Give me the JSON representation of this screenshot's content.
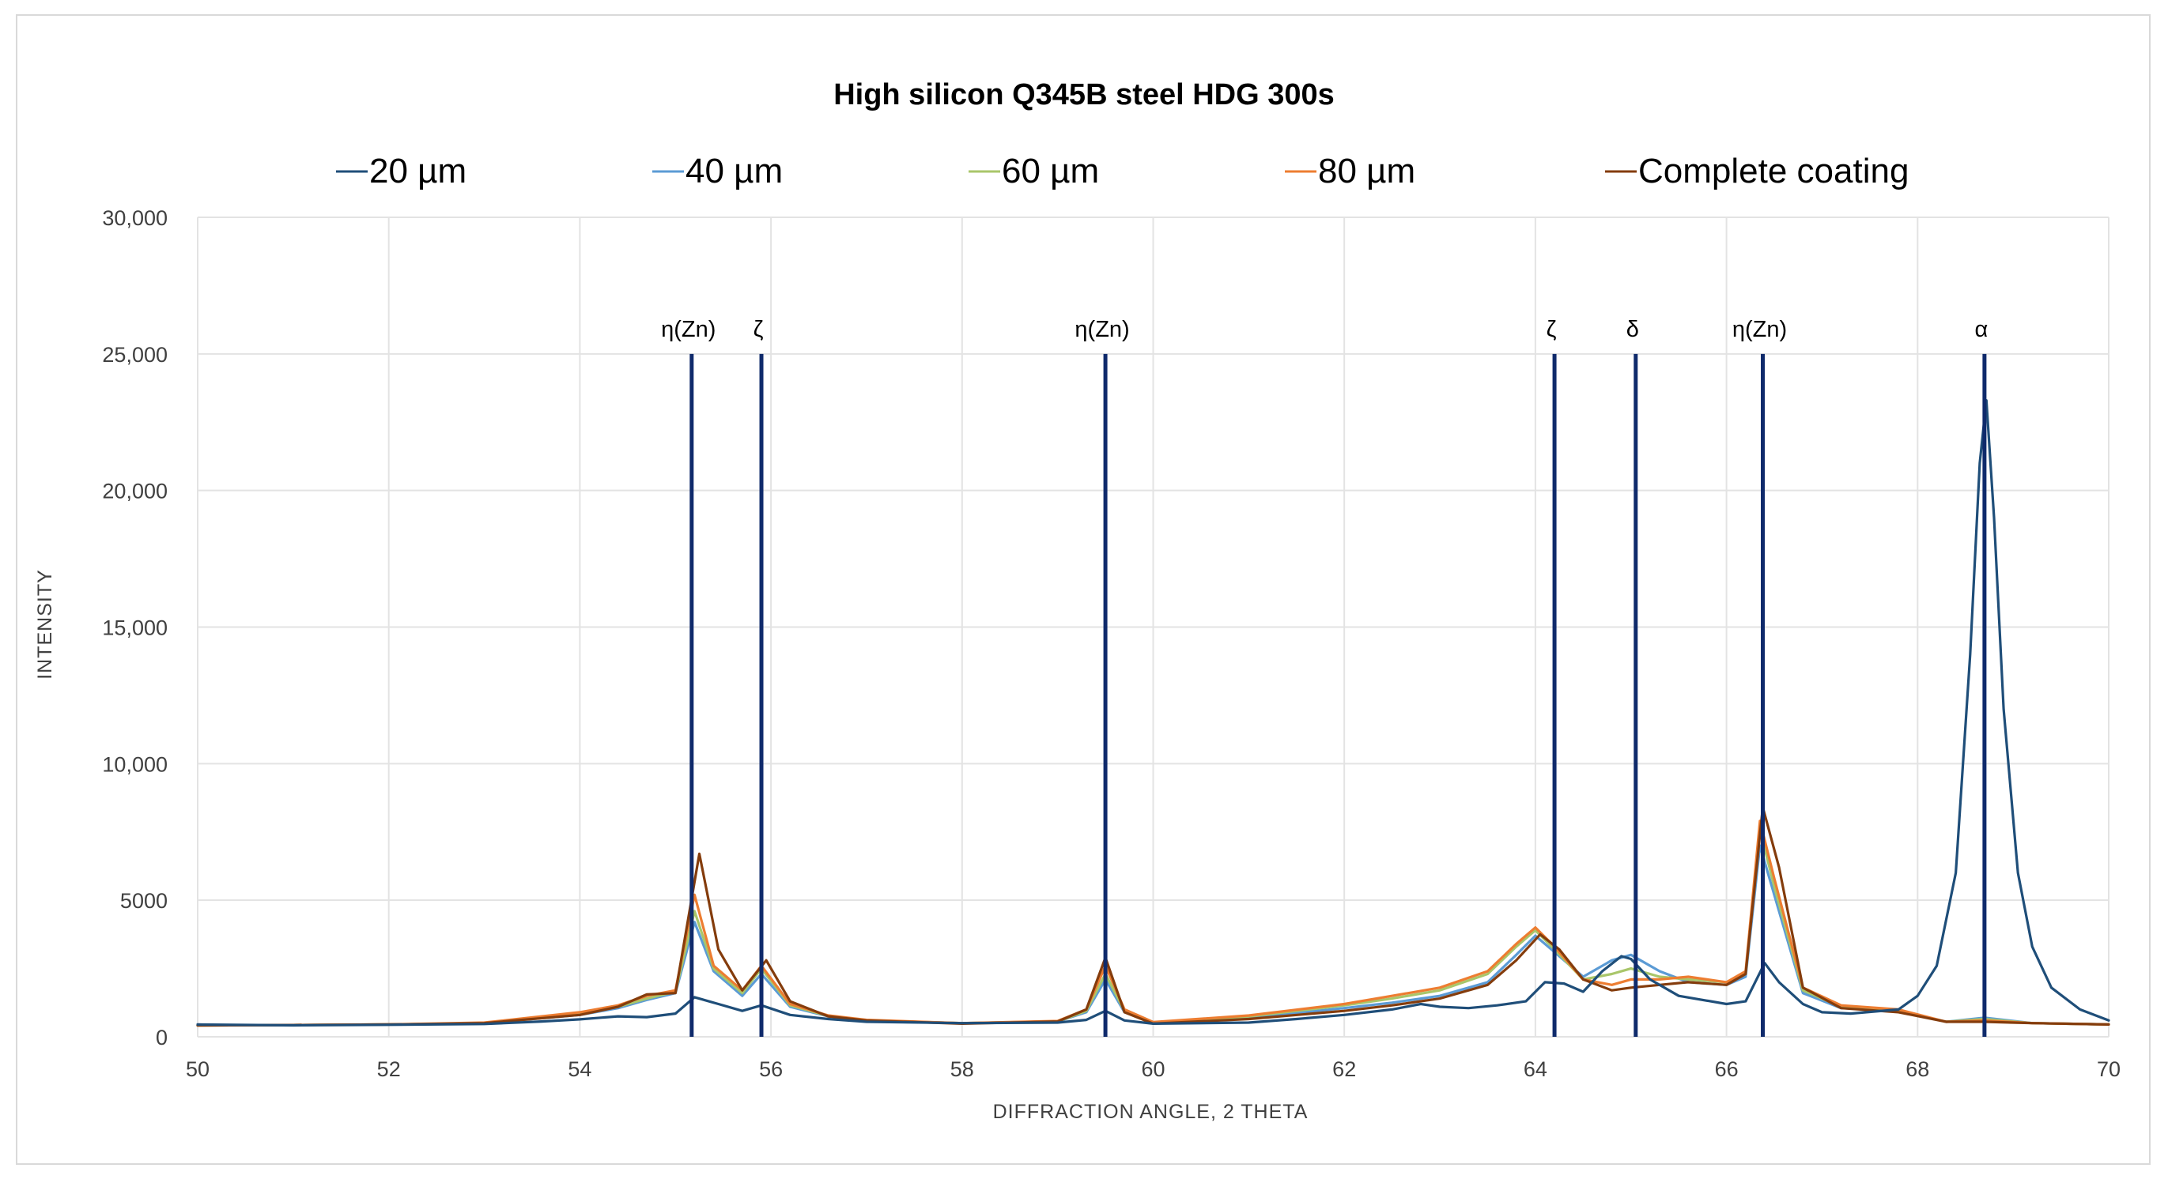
{
  "chart_data": {
    "type": "line",
    "title": "High silicon Q345B steel HDG 300s",
    "xlabel": "DIFFRACTION ANGLE, 2 THETA",
    "ylabel": "INTENSITY",
    "xlim": [
      50,
      70
    ],
    "ylim": [
      0,
      30000
    ],
    "x_ticks": [
      50,
      52,
      54,
      56,
      58,
      60,
      62,
      64,
      66,
      68,
      70
    ],
    "x_tick_labels": [
      "50",
      "52",
      "54",
      "56",
      "58",
      "60",
      "62",
      "64",
      "66",
      "68",
      "70"
    ],
    "y_ticks": [
      0,
      5000,
      10000,
      15000,
      20000,
      25000,
      30000
    ],
    "y_tick_labels": [
      "0",
      "5000",
      "10,000",
      "15,000",
      "20,000",
      "25,000",
      "30,000"
    ],
    "grid": true,
    "legend_position": "top",
    "series": [
      {
        "name": "20 µm",
        "color": "#1f4e79",
        "x": [
          50,
          51,
          52,
          53,
          53.6,
          54,
          54.4,
          54.7,
          55,
          55.2,
          55.45,
          55.7,
          55.9,
          56.2,
          56.6,
          57,
          58,
          59,
          59.3,
          59.5,
          59.7,
          60,
          61,
          61.5,
          62,
          62.5,
          62.8,
          63,
          63.3,
          63.6,
          63.9,
          64.1,
          64.3,
          64.5,
          64.7,
          64.9,
          65,
          65.2,
          65.5,
          66,
          66.2,
          66.4,
          66.55,
          66.8,
          67,
          67.3,
          67.8,
          68,
          68.2,
          68.4,
          68.55,
          68.65,
          68.72,
          68.8,
          68.9,
          69.05,
          69.2,
          69.4,
          69.7,
          70
        ],
        "y": [
          450,
          420,
          440,
          470,
          560,
          640,
          750,
          720,
          850,
          1450,
          1200,
          950,
          1150,
          800,
          650,
          550,
          500,
          520,
          620,
          950,
          600,
          480,
          520,
          650,
          800,
          1000,
          1200,
          1100,
          1050,
          1150,
          1300,
          2000,
          1950,
          1650,
          2400,
          2950,
          2850,
          2100,
          1500,
          1200,
          1300,
          2700,
          2000,
          1200,
          900,
          850,
          1000,
          1500,
          2600,
          6000,
          14000,
          21000,
          23300,
          19000,
          12000,
          6000,
          3300,
          1800,
          1000,
          600
        ]
      },
      {
        "name": "40 µm",
        "color": "#5b9bd5",
        "x": [
          50,
          51,
          52,
          53,
          54,
          54.4,
          54.7,
          55,
          55.2,
          55.4,
          55.7,
          55.9,
          56.2,
          56.6,
          57,
          58,
          59,
          59.3,
          59.5,
          59.7,
          60,
          61,
          62,
          62.5,
          63,
          63.5,
          63.8,
          64.0,
          64.2,
          64.5,
          64.8,
          65.0,
          65.3,
          65.6,
          66.0,
          66.2,
          66.35,
          66.5,
          66.8,
          67.2,
          67.8,
          68.3,
          68.7,
          69.2,
          70
        ],
        "y": [
          420,
          430,
          450,
          500,
          800,
          1050,
          1350,
          1600,
          4200,
          2400,
          1500,
          2300,
          1100,
          750,
          600,
          500,
          560,
          900,
          2100,
          900,
          520,
          700,
          1050,
          1250,
          1500,
          2000,
          3000,
          3700,
          3100,
          2200,
          2800,
          3000,
          2400,
          2000,
          1900,
          2200,
          7000,
          5200,
          1600,
          1050,
          950,
          550,
          700,
          500,
          450
        ]
      },
      {
        "name": "60 µm",
        "color": "#a9c66a",
        "x": [
          50,
          51,
          52,
          53,
          54,
          54.4,
          54.7,
          55,
          55.2,
          55.4,
          55.7,
          55.9,
          56.2,
          56.6,
          57,
          58,
          59,
          59.3,
          59.5,
          59.7,
          60,
          61,
          62,
          62.5,
          63,
          63.5,
          63.8,
          64.0,
          64.2,
          64.5,
          64.8,
          65.0,
          65.3,
          65.6,
          66.0,
          66.2,
          66.35,
          66.5,
          66.8,
          67.2,
          67.8,
          68.3,
          68.7,
          69.2,
          70
        ],
        "y": [
          420,
          430,
          450,
          500,
          850,
          1100,
          1400,
          1650,
          4600,
          2500,
          1600,
          2500,
          1150,
          760,
          600,
          500,
          560,
          950,
          2300,
          950,
          520,
          750,
          1150,
          1400,
          1700,
          2300,
          3300,
          3900,
          3200,
          2100,
          2300,
          2500,
          2200,
          2100,
          2000,
          2300,
          7600,
          5500,
          1700,
          1100,
          950,
          550,
          650,
          500,
          450
        ]
      },
      {
        "name": "80 µm",
        "color": "#ed7d31",
        "x": [
          50,
          51,
          52,
          53,
          54,
          54.4,
          54.7,
          55,
          55.2,
          55.4,
          55.7,
          55.9,
          56.2,
          56.6,
          57,
          58,
          59,
          59.3,
          59.5,
          59.7,
          60,
          61,
          62,
          62.5,
          63,
          63.5,
          63.8,
          64.0,
          64.2,
          64.5,
          64.8,
          65.0,
          65.3,
          65.6,
          66.0,
          66.2,
          66.35,
          66.5,
          66.8,
          67.2,
          67.8,
          68.3,
          68.7,
          69.2,
          70
        ],
        "y": [
          420,
          430,
          450,
          520,
          900,
          1150,
          1500,
          1700,
          5200,
          2600,
          1700,
          2600,
          1200,
          780,
          620,
          500,
          580,
          1000,
          2600,
          1000,
          540,
          780,
          1200,
          1500,
          1800,
          2400,
          3400,
          4000,
          3300,
          2100,
          1900,
          2100,
          2100,
          2200,
          2000,
          2400,
          7900,
          5800,
          1800,
          1150,
          1000,
          550,
          600,
          500,
          450
        ]
      },
      {
        "name": "Complete coating",
        "color": "#843c0c",
        "x": [
          50,
          51,
          52,
          53,
          54,
          54.4,
          54.7,
          55,
          55.25,
          55.45,
          55.7,
          55.95,
          56.2,
          56.6,
          57,
          58,
          59,
          59.3,
          59.5,
          59.7,
          60,
          61,
          62,
          62.5,
          63,
          63.5,
          63.8,
          64.05,
          64.25,
          64.5,
          64.8,
          65.0,
          65.3,
          65.6,
          66.0,
          66.2,
          66.38,
          66.55,
          66.8,
          67.2,
          67.8,
          68.3,
          68.7,
          69.2,
          70
        ],
        "y": [
          420,
          430,
          450,
          500,
          800,
          1100,
          1550,
          1600,
          6700,
          3200,
          1700,
          2800,
          1300,
          750,
          600,
          480,
          560,
          1000,
          2900,
          900,
          480,
          650,
          950,
          1150,
          1400,
          1900,
          2800,
          3750,
          3200,
          2100,
          1700,
          1800,
          1900,
          2000,
          1900,
          2300,
          8400,
          6200,
          1800,
          1050,
          900,
          550,
          550,
          500,
          450
        ]
      }
    ],
    "reference_lines": [
      {
        "x": 55.17,
        "label": "η(Zn)"
      },
      {
        "x": 55.9,
        "label": "ζ"
      },
      {
        "x": 59.5,
        "label": "η(Zn)"
      },
      {
        "x": 64.2,
        "label": "ζ"
      },
      {
        "x": 65.05,
        "label": "δ"
      },
      {
        "x": 66.38,
        "label": "η(Zn)"
      },
      {
        "x": 68.7,
        "label": "α"
      }
    ],
    "reference_line_top": 25000,
    "reference_line_color": "#0f2a6b"
  }
}
